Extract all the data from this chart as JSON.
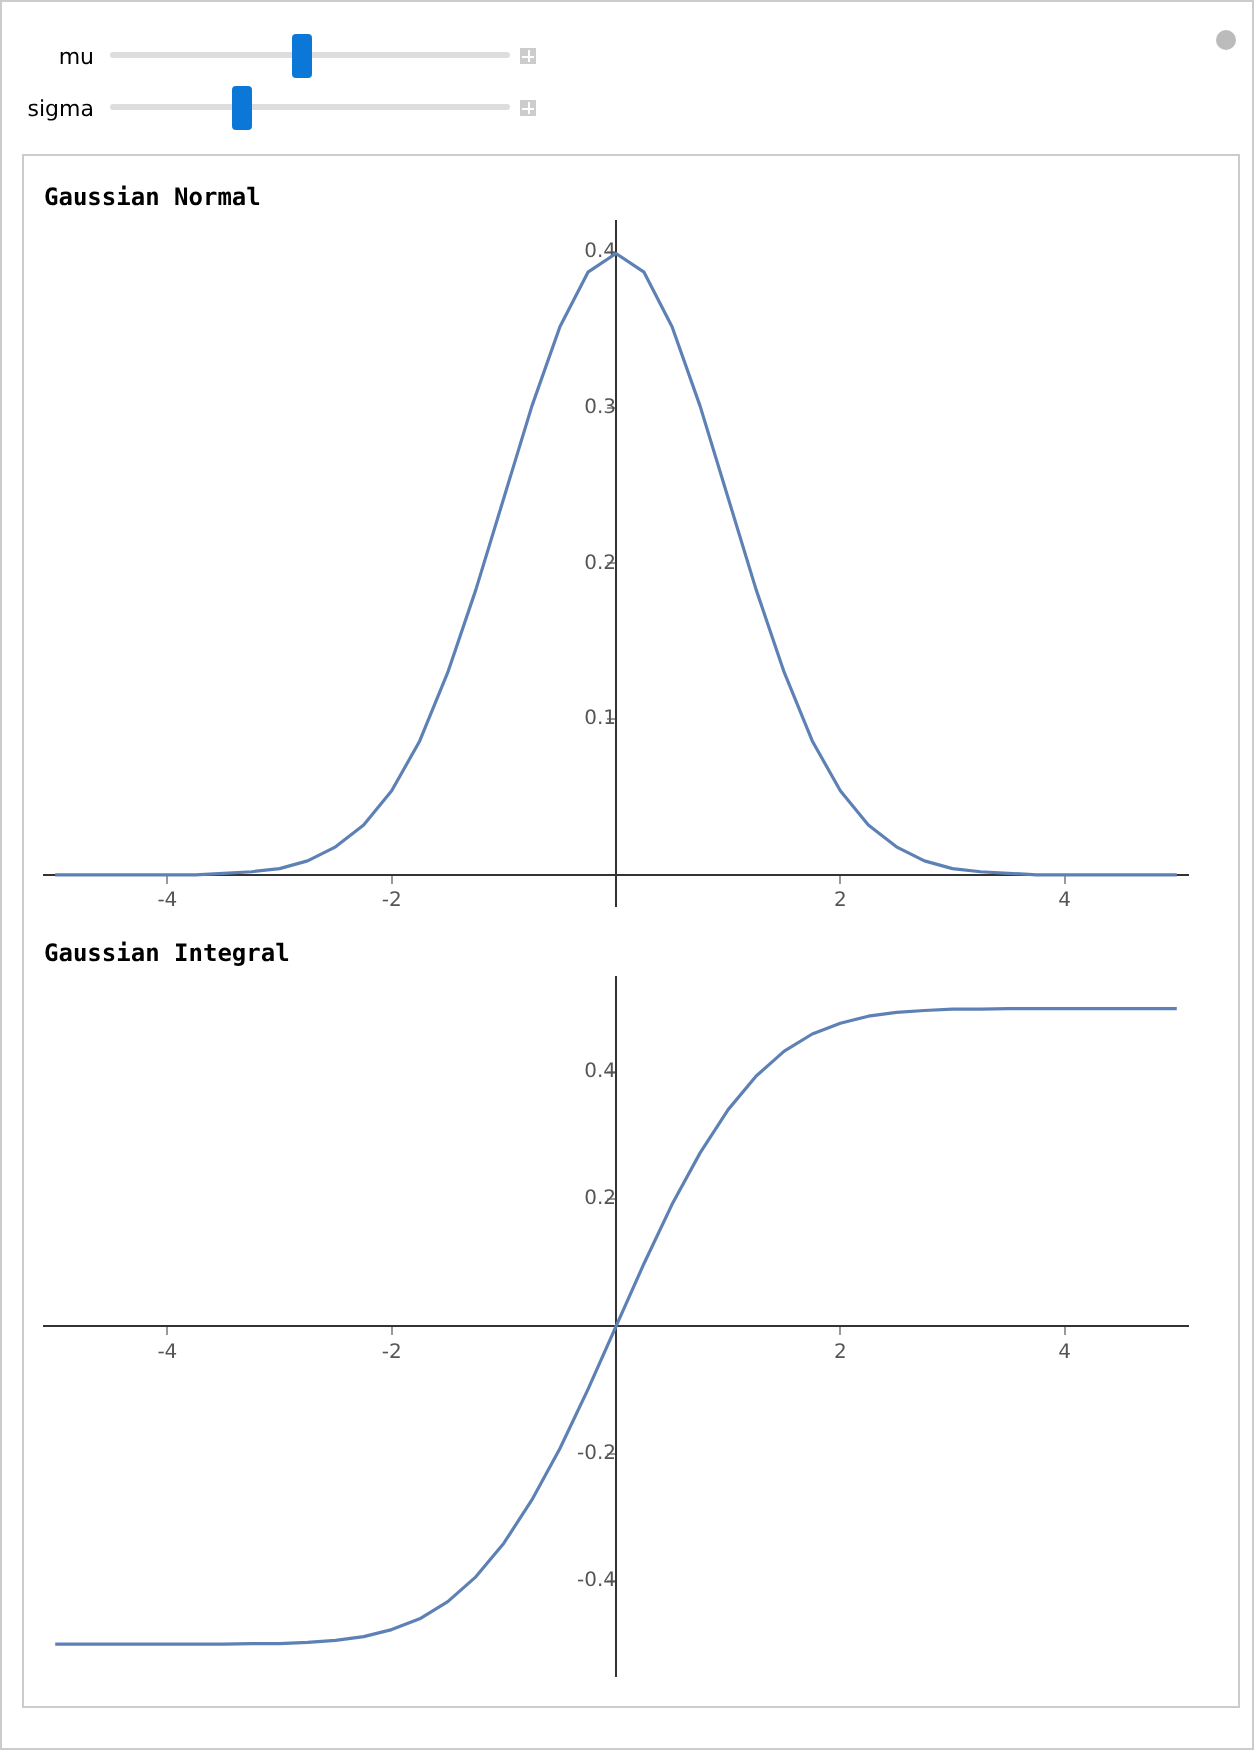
{
  "chart_data": [
    {
      "type": "other",
      "annotations": [
        "mu",
        "sigma"
      ]
    },
    {
      "type": "line",
      "title": "Gaussian Normal",
      "x": [
        -5,
        -4.75,
        -4.5,
        -4.25,
        -4,
        -3.75,
        -3.5,
        -3.25,
        -3,
        -2.75,
        -2.5,
        -2.25,
        -2,
        -1.75,
        -1.5,
        -1.25,
        -1,
        -0.75,
        -0.5,
        -0.25,
        0,
        0.25,
        0.5,
        0.75,
        1,
        1.25,
        1.5,
        1.75,
        2,
        2.25,
        2.5,
        2.75,
        3,
        3.25,
        3.5,
        3.75,
        4,
        4.25,
        4.5,
        4.75,
        5
      ],
      "series": [
        {
          "color": "#5e81b5",
          "values": [
            0,
            0,
            0,
            0,
            0,
            0,
            0.001,
            0.002,
            0.004,
            0.009,
            0.018,
            0.032,
            0.054,
            0.086,
            0.13,
            0.183,
            0.242,
            0.301,
            0.352,
            0.387,
            0.399,
            0.387,
            0.352,
            0.301,
            0.242,
            0.183,
            0.13,
            0.086,
            0.054,
            0.032,
            0.018,
            0.009,
            0.004,
            0.002,
            0.001,
            0,
            0,
            0,
            0,
            0,
            0
          ]
        }
      ],
      "xlim": [
        -5.1,
        5.1
      ],
      "xticks": [
        -4,
        -2,
        2,
        4
      ],
      "ylim": [
        -0.02,
        0.42
      ],
      "yticks": [
        0.1,
        0.2,
        0.3,
        0.4
      ],
      "grid": false,
      "legend": false,
      "marker": "none",
      "line_style": "solid"
    },
    {
      "type": "line",
      "title": "Gaussian Integral",
      "x": [
        -5,
        -4.75,
        -4.5,
        -4.25,
        -4,
        -3.75,
        -3.5,
        -3.25,
        -3,
        -2.75,
        -2.5,
        -2.25,
        -2,
        -1.75,
        -1.5,
        -1.25,
        -1,
        -0.75,
        -0.5,
        -0.25,
        0,
        0.25,
        0.5,
        0.75,
        1,
        1.25,
        1.5,
        1.75,
        2,
        2.25,
        2.5,
        2.75,
        3,
        3.25,
        3.5,
        3.75,
        4,
        4.25,
        4.5,
        4.75,
        5
      ],
      "series": [
        {
          "color": "#5e81b5",
          "values": [
            -0.5,
            -0.5,
            -0.5,
            -0.5,
            -0.5,
            -0.5,
            -0.5,
            -0.499,
            -0.499,
            -0.497,
            -0.494,
            -0.488,
            -0.477,
            -0.46,
            -0.433,
            -0.394,
            -0.341,
            -0.273,
            -0.192,
            -0.099,
            0,
            0.099,
            0.192,
            0.273,
            0.341,
            0.394,
            0.433,
            0.46,
            0.477,
            0.488,
            0.494,
            0.497,
            0.499,
            0.499,
            0.5,
            0.5,
            0.5,
            0.5,
            0.5,
            0.5,
            0.5
          ]
        }
      ],
      "xlim": [
        -5.1,
        5.1
      ],
      "xticks": [
        -4,
        -2,
        2,
        4
      ],
      "ylim": [
        -0.55,
        0.55
      ],
      "yticks": [
        -0.4,
        -0.2,
        0.2,
        0.4
      ],
      "grid": false,
      "legend": false,
      "marker": "none",
      "line_style": "solid"
    }
  ]
}
